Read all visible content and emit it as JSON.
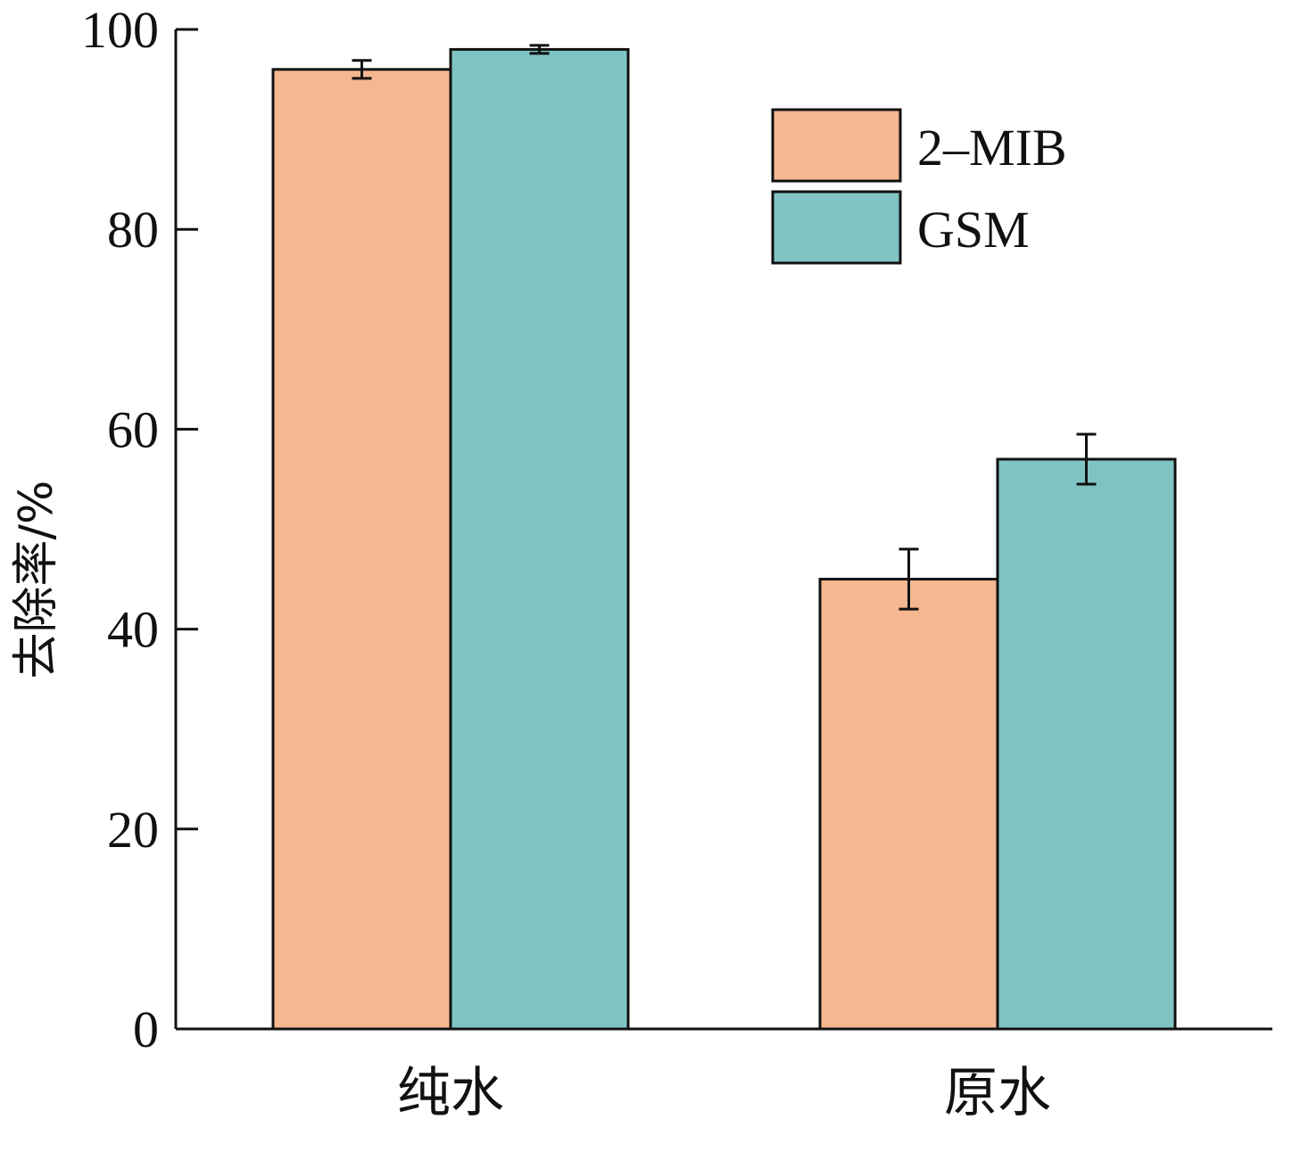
{
  "chart_data": {
    "type": "bar",
    "categories": [
      "纯水",
      "原水"
    ],
    "series": [
      {
        "name": "2–MIB",
        "values": [
          96.0,
          45.0
        ],
        "errors": [
          0.9,
          3.0
        ],
        "color": "#F5B790"
      },
      {
        "name": "GSM",
        "values": [
          98.0,
          57.0
        ],
        "errors": [
          0.4,
          2.5
        ],
        "color": "#7FC4C2"
      }
    ],
    "ylabel": "去除率/%",
    "xlabel": "",
    "ylim": [
      0,
      100
    ],
    "yticks": [
      0,
      20,
      40,
      60,
      80,
      100
    ],
    "legend_position": "top-right",
    "grid": false
  }
}
